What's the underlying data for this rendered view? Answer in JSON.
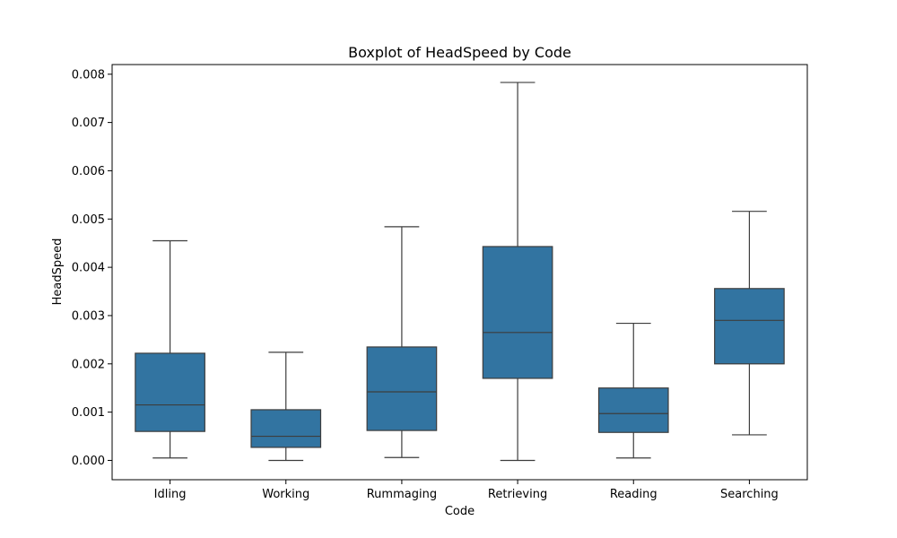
{
  "chart_data": {
    "type": "boxplot",
    "title": "Boxplot of HeadSpeed by Code",
    "xlabel": "Code",
    "ylabel": "HeadSpeed",
    "ylim": [
      -0.0004,
      0.0082
    ],
    "yticks": [
      "0.000",
      "0.001",
      "0.002",
      "0.003",
      "0.004",
      "0.005",
      "0.006",
      "0.007",
      "0.008"
    ],
    "categories": [
      "Idling",
      "Working",
      "Rummaging",
      "Retrieving",
      "Reading",
      "Searching"
    ],
    "boxes": [
      {
        "category": "Idling",
        "whislo": 5e-05,
        "q1": 0.0006,
        "med": 0.00115,
        "q3": 0.00222,
        "whishi": 0.00455
      },
      {
        "category": "Working",
        "whislo": 0.0,
        "q1": 0.00027,
        "med": 0.0005,
        "q3": 0.00105,
        "whishi": 0.00224
      },
      {
        "category": "Rummaging",
        "whislo": 6e-05,
        "q1": 0.00062,
        "med": 0.00142,
        "q3": 0.00235,
        "whishi": 0.00484
      },
      {
        "category": "Retrieving",
        "whislo": 0.0,
        "q1": 0.0017,
        "med": 0.00265,
        "q3": 0.00443,
        "whishi": 0.00783
      },
      {
        "category": "Reading",
        "whislo": 5e-05,
        "q1": 0.00058,
        "med": 0.00097,
        "q3": 0.0015,
        "whishi": 0.00284
      },
      {
        "category": "Searching",
        "whislo": 0.00053,
        "q1": 0.002,
        "med": 0.0029,
        "q3": 0.00356,
        "whishi": 0.00516
      }
    ],
    "box_color": "#3274a1",
    "line_color": "#3d3d3d",
    "grid": false,
    "legend": "none"
  }
}
